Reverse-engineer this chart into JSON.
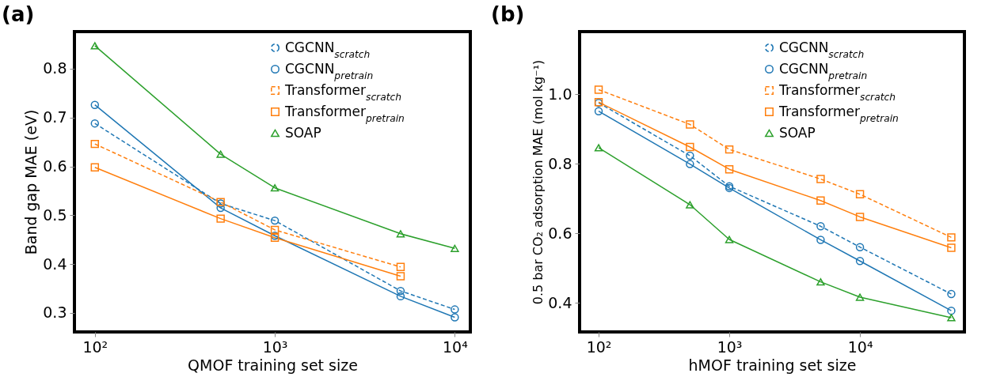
{
  "chart_data": [
    {
      "type": "line",
      "title": "(a)",
      "xlabel": "QMOF training set size",
      "ylabel": "Band gap MAE (eV)",
      "log": "x",
      "grid": false,
      "legend": "top right",
      "xlim": [
        77,
        12200
      ],
      "ylim": [
        0.261,
        0.876
      ],
      "xticks": [
        {
          "value": 100,
          "label": "10²"
        },
        {
          "value": 1000,
          "label": "10³"
        },
        {
          "value": 10000,
          "label": "10⁴"
        }
      ],
      "yticks": [
        0.3,
        0.4,
        0.5,
        0.6,
        0.7,
        0.8
      ],
      "x": [
        100,
        500,
        1000,
        5000,
        10000
      ],
      "series": [
        {
          "name": "CGCNN$_{scratch}$",
          "color": "#1f77b4",
          "line_style": "dashed",
          "marker": "circle",
          "values": [
            0.688,
            0.524,
            0.489,
            0.345,
            0.307
          ]
        },
        {
          "name": "CGCNN$_{pretrain}$",
          "color": "#1f77b4",
          "line_style": "solid",
          "marker": "circle",
          "values": [
            0.726,
            0.515,
            0.458,
            0.334,
            0.291
          ]
        },
        {
          "name": "Transformer$_{scratch}$",
          "color": "#ff7f0e",
          "line_style": "dashed",
          "marker": "square",
          "x": [
            100,
            500,
            1000,
            5000
          ],
          "values": [
            0.646,
            0.527,
            0.47,
            0.394
          ]
        },
        {
          "name": "Transformer$_{pretrain}$",
          "color": "#ff7f0e",
          "line_style": "solid",
          "marker": "square",
          "x": [
            100,
            500,
            1000,
            5000
          ],
          "values": [
            0.598,
            0.493,
            0.454,
            0.375
          ]
        },
        {
          "name": "SOAP",
          "color": "#2ca02c",
          "line_style": "solid",
          "marker": "triangle",
          "values": [
            0.847,
            0.625,
            0.556,
            0.462,
            0.432
          ]
        }
      ]
    },
    {
      "type": "line",
      "title": "(b)",
      "xlabel": "hMOF training set size",
      "ylabel": "0.5 bar CO₂ adsorption MAE (mol kg⁻¹)",
      "log": "x",
      "grid": false,
      "legend": "top right",
      "xlim": [
        71.5,
        63000
      ],
      "ylim": [
        0.316,
        1.18
      ],
      "xticks": [
        {
          "value": 100,
          "label": "10²"
        },
        {
          "value": 1000,
          "label": "10³"
        },
        {
          "value": 10000,
          "label": "10⁴"
        }
      ],
      "yticks": [
        {
          "value": 0.4,
          "label": "0.4"
        },
        {
          "value": 0.6,
          "label": "0.6"
        },
        {
          "value": 0.8,
          "label": "0.8"
        },
        {
          "value": 1.0,
          "label": "1.0"
        }
      ],
      "x": [
        100,
        500,
        1000,
        5000,
        10000,
        50000
      ],
      "series": [
        {
          "name": "CGCNN$_{scratch}$",
          "color": "#1f77b4",
          "line_style": "dashed",
          "marker": "circle",
          "values": [
            0.975,
            0.823,
            0.735,
            0.62,
            0.56,
            0.425
          ]
        },
        {
          "name": "CGCNN$_{pretrain}$",
          "color": "#1f77b4",
          "line_style": "solid",
          "marker": "circle",
          "values": [
            0.951,
            0.799,
            0.73,
            0.581,
            0.52,
            0.377
          ]
        },
        {
          "name": "Transformer$_{scratch}$",
          "color": "#ff7f0e",
          "line_style": "dashed",
          "marker": "square",
          "values": [
            1.013,
            0.913,
            0.841,
            0.756,
            0.712,
            0.588
          ]
        },
        {
          "name": "Transformer$_{pretrain}$",
          "color": "#ff7f0e",
          "line_style": "solid",
          "marker": "square",
          "values": [
            0.977,
            0.848,
            0.784,
            0.694,
            0.647,
            0.558
          ]
        },
        {
          "name": "SOAP",
          "color": "#2ca02c",
          "line_style": "solid",
          "marker": "triangle",
          "values": [
            0.846,
            0.682,
            0.582,
            0.46,
            0.416,
            0.357
          ]
        }
      ]
    }
  ]
}
